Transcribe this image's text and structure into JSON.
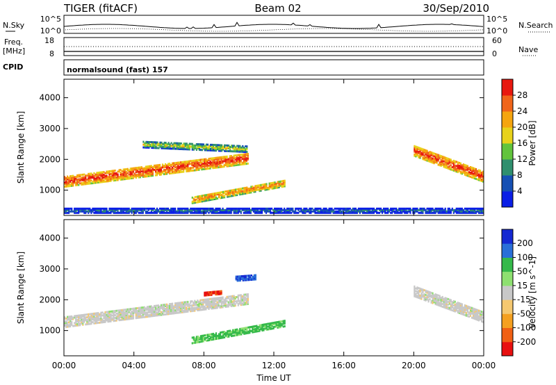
{
  "header": {
    "station": "TIGER (fitACF)",
    "beam": "Beam 02",
    "date": "30/Sep/2010"
  },
  "status_panels": {
    "nsky_label": "N.Sky",
    "nsky_ticks": [
      "10^5",
      "10^0"
    ],
    "nsearch_label": "N.Search",
    "nsearch_ticks": [
      "10^5",
      "10^0"
    ],
    "freq_label": "Freq.",
    "freq_unit": "[MHz]",
    "freq_ticks": [
      "18",
      "8"
    ],
    "nave_label": "Nave",
    "nave_ticks": [
      "60",
      "0"
    ],
    "cpid_label": "CPID",
    "cpid_value": "normalsound (fast) 157"
  },
  "chart_data": [
    {
      "type": "heatmap",
      "parameter": "Power",
      "ylabel": "Slant Range [km]",
      "xlabel": "Time UT",
      "ylim": [
        180,
        4600
      ],
      "yticks": [
        1000,
        2000,
        3000,
        4000
      ],
      "xlim_hours": [
        0,
        24
      ],
      "xticks": [
        "00:00",
        "04:00",
        "08:00",
        "12:00",
        "16:00",
        "20:00",
        "00:00"
      ],
      "colorbar": {
        "label": "Power [dB]",
        "ticks": [
          "4",
          "8",
          "12",
          "16",
          "20",
          "24",
          "28"
        ],
        "colors": [
          "#0a1ee6",
          "#1650b4",
          "#2f8f6e",
          "#62c43c",
          "#e8d21a",
          "#f5a50f",
          "#f0651a",
          "#e8180f"
        ]
      },
      "features": [
        {
          "start_hour": 0.0,
          "end_hour": 10.5,
          "range_km_start": 1300,
          "range_km_end": 2050,
          "width_km": 350,
          "level": 7
        },
        {
          "start_hour": 4.5,
          "end_hour": 10.5,
          "range_km_start": 2500,
          "range_km_end": 2350,
          "width_km": 200,
          "level": 4
        },
        {
          "start_hour": 7.3,
          "end_hour": 12.6,
          "range_km_start": 700,
          "range_km_end": 1250,
          "width_km": 220,
          "level": 6
        },
        {
          "start_hour": 20.0,
          "end_hour": 24.0,
          "range_km_start": 2300,
          "range_km_end": 1450,
          "width_km": 350,
          "level": 7
        },
        {
          "start_hour": 0.0,
          "end_hour": 24.0,
          "range_km_start": 350,
          "range_km_end": 350,
          "width_km": 150,
          "level": 2
        }
      ]
    },
    {
      "type": "heatmap",
      "parameter": "Velocity",
      "ylabel": "Slant Range [km]",
      "xlabel": "Time UT",
      "ylim": [
        180,
        4600
      ],
      "yticks": [
        1000,
        2000,
        3000,
        4000
      ],
      "xlim_hours": [
        0,
        24
      ],
      "xticks": [
        "00:00",
        "04:00",
        "08:00",
        "12:00",
        "16:00",
        "20:00",
        "00:00"
      ],
      "colorbar": {
        "label": "Velocity [m s^-1]",
        "ticks": [
          "200",
          "100",
          "50",
          "15",
          "-15",
          "-50",
          "-100",
          "-200"
        ],
        "colors": [
          "#1428d2",
          "#2a6fd8",
          "#35b94a",
          "#8ee070",
          "#c8c8c8",
          "#f5c870",
          "#f5a020",
          "#f06014",
          "#e81010"
        ]
      },
      "features": [
        {
          "start_hour": 0.0,
          "end_hour": 10.5,
          "range_km_start": 1300,
          "range_km_end": 2050,
          "width_km": 350,
          "value": 0
        },
        {
          "start_hour": 7.3,
          "end_hour": 12.6,
          "range_km_start": 700,
          "range_km_end": 1250,
          "width_km": 200,
          "value": 40
        },
        {
          "start_hour": 20.0,
          "end_hour": 24.0,
          "range_km_start": 2300,
          "range_km_end": 1450,
          "width_km": 350,
          "value": 0
        },
        {
          "start_hour": 9.8,
          "end_hour": 11.0,
          "range_km_start": 2700,
          "range_km_end": 2750,
          "width_km": 150,
          "value": 150
        },
        {
          "start_hour": 8.0,
          "end_hour": 9.0,
          "range_km_start": 2200,
          "range_km_end": 2250,
          "width_km": 100,
          "value": -150
        }
      ]
    }
  ]
}
